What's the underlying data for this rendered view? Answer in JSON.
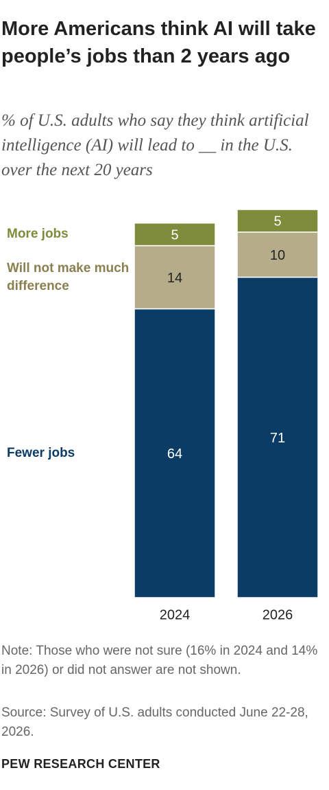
{
  "chart_data": {
    "type": "stacked_bar",
    "title": "More Americans think AI will take people’s jobs than 2 years ago",
    "subtitle": "% of U.S. adults who say they think artificial intelligence (AI) will lead to __ in the U.S. over the next 20 years",
    "categories": [
      "2024",
      "2026"
    ],
    "series": [
      {
        "name": "Fewer jobs",
        "color": "#0b3c65",
        "values": [
          64,
          71
        ]
      },
      {
        "name": "Will not make much difference",
        "color": "#b5ad89",
        "values": [
          14,
          10
        ]
      },
      {
        "name": "More jobs",
        "color": "#7e8b3a",
        "values": [
          5,
          5
        ]
      }
    ],
    "note": "Note: Those who were not sure (16% in 2024 and 14% in 2026) or did not answer are not shown.",
    "source": "Source: Survey of U.S. adults conducted June 22-28, 2026.",
    "footer": "PEW RESEARCH CENTER"
  }
}
